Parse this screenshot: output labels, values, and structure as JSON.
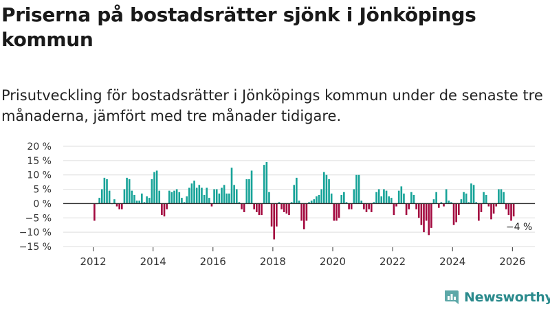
{
  "title": "Priserna på bostadsrätter sjönk i Jönköpings kommun",
  "subtitle": "Prisutveckling för bostadsrätter i Jönköpings kommun under de senaste tre månaderna, jämfört med tre månader tidigare.",
  "brand": {
    "name": "Newsworthy"
  },
  "colors": {
    "positive": "#17a398",
    "negative": "#a3093f",
    "brand": "#2a8a8c",
    "axis": "#333333",
    "grid": "#dddddd"
  },
  "chart_data": {
    "type": "bar",
    "title": "Prisutveckling för bostadsrätter i Jönköpings kommun",
    "xlabel": "",
    "ylabel": "",
    "ylim": [
      -15,
      20
    ],
    "xlim": [
      2011.0,
      2026.75
    ],
    "y_ticks": [
      20,
      15,
      10,
      5,
      0,
      -5,
      -10,
      -15
    ],
    "y_tick_labels": [
      "20 %",
      "15 %",
      "10 %",
      "5 %",
      "0 %",
      "−5 %",
      "−10 %",
      "−15 %"
    ],
    "x_ticks": [
      2012,
      2014,
      2016,
      2018,
      2020,
      2022,
      2024,
      2026
    ],
    "x_tick_labels": [
      "2012",
      "2014",
      "2016",
      "2018",
      "2020",
      "2022",
      "2024",
      "2026"
    ],
    "start": {
      "year": 2012,
      "month": 1
    },
    "values": [
      -6,
      0,
      2,
      5,
      9,
      8.5,
      4.5,
      0,
      1.5,
      -1,
      -2,
      -2,
      5,
      9,
      8.5,
      4.5,
      3,
      1,
      1,
      3.5,
      0.5,
      2.5,
      2,
      8.5,
      11,
      11.5,
      4.5,
      -4,
      -4.5,
      -2,
      4.5,
      4,
      4.5,
      5,
      4,
      2,
      0.5,
      2.5,
      5.5,
      7,
      8,
      5.5,
      6.5,
      5.5,
      3,
      5.5,
      2,
      -1,
      5,
      5,
      3.5,
      5.5,
      6.5,
      3.5,
      3.5,
      12.5,
      6.5,
      5,
      0.5,
      -2,
      -3,
      8.5,
      8.5,
      11.5,
      -2,
      -3,
      -4,
      -4,
      13.5,
      14.5,
      4,
      -8,
      -12.5,
      -8,
      0.5,
      -2,
      -3,
      -3.5,
      -4,
      0.5,
      6.5,
      9,
      1,
      -6,
      -9,
      -6,
      0.5,
      1,
      1.5,
      2.5,
      3,
      5,
      11,
      10,
      8.5,
      3.5,
      -6,
      -6,
      -5,
      3,
      4,
      0.5,
      -2,
      -2,
      5,
      10,
      10,
      1,
      -2,
      -3,
      -2,
      -3,
      0.5,
      4,
      5,
      2.5,
      5,
      4.5,
      2.5,
      2,
      -4,
      -1,
      4.5,
      6,
      3.5,
      -4,
      -2,
      4,
      3,
      -2,
      -5,
      -7.5,
      -10,
      -6,
      -11,
      -8.5,
      1.5,
      4,
      -1.5,
      0.5,
      -1,
      5,
      1,
      0.5,
      -7.5,
      -6.5,
      -4,
      1.5,
      4,
      3.5,
      0.5,
      7,
      6.5,
      0.5,
      -6,
      -3,
      4,
      3,
      -1,
      -5.5,
      -3.5,
      -1,
      5,
      5,
      4,
      -2,
      -4,
      -6,
      -4.5
    ],
    "annotation": {
      "text": "−4 %",
      "value": -4
    }
  }
}
